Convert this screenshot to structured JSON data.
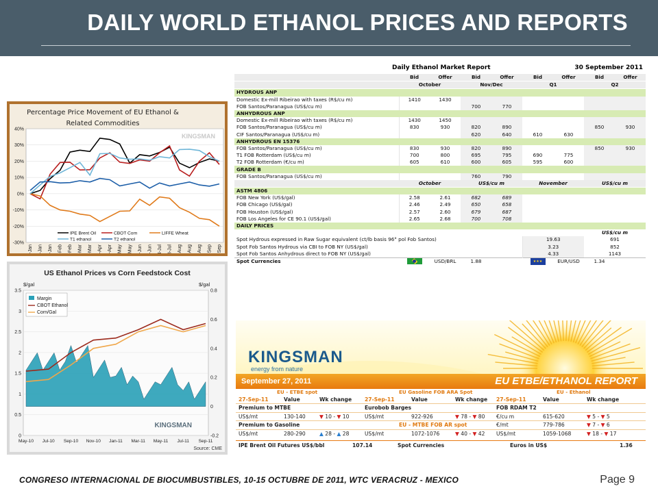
{
  "slide": {
    "title": "DAILY WORLD ETHANOL PRICES AND REPORTS",
    "footer": "CONGRESO INTERNACIONAL DE BIOCUMBUSTIBLES, 10-15 OCTUBRE DE 2011, WTC VERACRUZ - MEXICO",
    "page": "Page 9"
  },
  "chart1": {
    "title": "Percentage Price Movement of EU Ethanol & Related Commodities",
    "brand": "KINGSMAN",
    "y_ticks": [
      "40%",
      "30%",
      "20%",
      "10%",
      "0%",
      "-10%",
      "-20%",
      "-30%"
    ],
    "x_ticks": [
      "3-Jan",
      "17-Jan",
      "31-Jan",
      "14-Feb",
      "28-Feb",
      "14-Mar",
      "28-Mar",
      "11-Apr",
      "25-Apr",
      "9-May",
      "23-May",
      "6-Jun",
      "20-Jun",
      "4-Jul",
      "18-Jul",
      "1-Aug",
      "15-Aug",
      "29-Aug",
      "12-Sep",
      "26-Sep"
    ],
    "legend": [
      "IPE Brent Oil",
      "CBOT Corn",
      "LIFFE Wheat",
      "T1 ethanol",
      "T2 ethanol"
    ],
    "colors": {
      "brent": "#000000",
      "corn": "#b81d1d",
      "wheat": "#e07a1a",
      "t1": "#6fb6d8",
      "t2": "#1c5ea8"
    }
  },
  "chart2": {
    "title": "US Ethanol Prices vs Corn Feedstock Cost",
    "y_left_unit": "$/gal",
    "y_right_unit": "$/gal",
    "y_left_ticks": [
      "3.5",
      "3",
      "2.5",
      "2",
      "1.5",
      "1",
      "0.5",
      "0"
    ],
    "y_right_ticks": [
      "0.8",
      "0.6",
      "0.4",
      "0.2",
      "0",
      "-0.2"
    ],
    "x_ticks": [
      "May-10",
      "Jul-10",
      "Sep-10",
      "Nov-10",
      "Jan-11",
      "Mar-11",
      "May-11",
      "Jul-11",
      "Sep-11"
    ],
    "legend": [
      "Margin",
      "CBOT Ethanol",
      "Corn/Gal"
    ],
    "brand": "KINGSMAN",
    "source": "Source: CME"
  },
  "chart_data": [
    {
      "type": "line",
      "title": "Percentage Price Movement of EU Ethanol & Related Commodities",
      "ylim": [
        -30,
        40
      ],
      "series": [
        {
          "name": "IPE Brent Oil",
          "values": [
            0,
            2,
            8,
            15,
            25,
            28,
            26,
            33,
            34,
            30,
            20,
            24,
            22,
            26,
            28,
            20,
            16,
            18,
            22,
            20
          ]
        },
        {
          "name": "CBOT Corn",
          "values": [
            0,
            -2,
            12,
            18,
            20,
            14,
            16,
            22,
            24,
            20,
            18,
            22,
            20,
            24,
            30,
            14,
            12,
            20,
            24,
            18
          ]
        },
        {
          "name": "LIFFE Wheat",
          "values": [
            0,
            -2,
            -6,
            -10,
            -12,
            -12,
            -14,
            -16,
            -14,
            -12,
            -10,
            -4,
            -6,
            -2,
            -4,
            -8,
            -12,
            -14,
            -16,
            -20
          ]
        },
        {
          "name": "T1 ethanol",
          "values": [
            0,
            6,
            10,
            14,
            16,
            18,
            12,
            24,
            26,
            22,
            20,
            22,
            20,
            24,
            22,
            26,
            28,
            26,
            24,
            20
          ]
        },
        {
          "name": "T2 ethanol",
          "values": [
            2,
            6,
            8,
            6,
            8,
            8,
            6,
            10,
            8,
            6,
            6,
            6,
            4,
            6,
            6,
            6,
            6,
            6,
            4,
            6
          ]
        }
      ]
    },
    {
      "type": "line",
      "title": "US Ethanol Prices vs Corn Feedstock Cost",
      "categories": [
        "May-10",
        "Jul-10",
        "Sep-10",
        "Nov-10",
        "Jan-11",
        "Mar-11",
        "May-11",
        "Jul-11",
        "Sep-11"
      ],
      "series": [
        {
          "name": "CBOT Ethanol",
          "values": [
            1.55,
            1.6,
            2.0,
            2.3,
            2.35,
            2.55,
            2.8,
            2.55,
            2.7
          ]
        },
        {
          "name": "Corn/Gal",
          "values": [
            1.3,
            1.35,
            1.7,
            2.1,
            2.2,
            2.5,
            2.65,
            2.5,
            2.65
          ]
        },
        {
          "name": "Margin",
          "values": [
            0.25,
            0.25,
            0.3,
            0.2,
            0.15,
            0.05,
            0.15,
            0.05,
            0.05
          ]
        }
      ]
    }
  ],
  "report": {
    "title": "Daily Ethanol Market Report",
    "date": "30 September 2011",
    "col_heads": [
      "Bid",
      "Offer",
      "Bid",
      "Offer",
      "Bid",
      "Offer",
      "Bid",
      "Offer"
    ],
    "periods": [
      "October",
      "Nov/Dec",
      "Q1",
      "Q2"
    ],
    "sections": [
      {
        "name": "HYDROUS ANP",
        "rows": [
          {
            "label": "Domestic Ex-mill Ribeirao with taxes (R$/cu m)",
            "v": [
              "1410",
              "1430",
              "",
              "",
              "",
              "",
              "",
              ""
            ]
          },
          {
            "label": "FOB Santos/Paranagua (US$/cu m)",
            "v": [
              "",
              "",
              "700",
              "770",
              "",
              "",
              "",
              ""
            ]
          }
        ]
      },
      {
        "name": "ANHYDROUS ANP",
        "rows": [
          {
            "label": "Domestic Ex-mill Ribeirao with taxes (R$/cu m)",
            "v": [
              "1430",
              "1450",
              "",
              "",
              "",
              "",
              "",
              ""
            ]
          },
          {
            "label": "FOB Santos/Paranagua (US$/cu m)",
            "v": [
              "830",
              "930",
              "820",
              "890",
              "",
              "",
              "850",
              "930"
            ]
          },
          {
            "label": "CIF Santos/Paranagua (US$/cu m)",
            "v": [
              "",
              "",
              "620",
              "640",
              "610",
              "630",
              "",
              ""
            ]
          }
        ]
      },
      {
        "name": "ANHYDROUS EN 15376",
        "rows": [
          {
            "label": "FOB Santos/Paranagua (US$/cu m)",
            "v": [
              "830",
              "930",
              "820",
              "890",
              "",
              "",
              "850",
              "930"
            ]
          },
          {
            "label": "T1 FOB Rotterdam (US$/cu m)",
            "v": [
              "700",
              "800",
              "695",
              "795",
              "690",
              "775",
              "",
              ""
            ]
          },
          {
            "label": "T2 FOB Rotterdam (€/cu m)",
            "v": [
              "605",
              "610",
              "600",
              "605",
              "595",
              "600",
              "",
              ""
            ]
          }
        ]
      },
      {
        "name": "GRADE B",
        "rows": [
          {
            "label": "FOB Santos/Paranagua (US$/cu m)",
            "v": [
              "",
              "",
              "760",
              "790",
              "",
              "",
              "",
              ""
            ]
          }
        ]
      }
    ],
    "astm": {
      "heads": [
        "October",
        "US$/cu m",
        "November",
        "US$/cu m"
      ],
      "name": "ASTM 4806",
      "rows": [
        {
          "label": "FOB New York (US$/gal)",
          "v": [
            "2.58",
            "2.61",
            "682",
            "689"
          ]
        },
        {
          "label": "FOB Chicago (US$/gal)",
          "v": [
            "2.46",
            "2.49",
            "650",
            "658"
          ]
        },
        {
          "label": "FOB Houston (US$/gal)",
          "v": [
            "2.57",
            "2.60",
            "679",
            "687"
          ]
        },
        {
          "label": "FOB Los Angeles for CE 90.1 (US$/gal)",
          "v": [
            "2.65",
            "2.68",
            "700",
            "708"
          ]
        }
      ]
    },
    "daily": {
      "name": "DAILY PRICES",
      "unit": "US$/cu m",
      "rows": [
        {
          "label": "Spot Hydrous expressed in Raw Sugar equivalent (ct/lb basis 96° pol Fob Santos)",
          "v": "19.63",
          "u": "691"
        },
        {
          "label": "Spot Fob Santos Hydrous via CBI to FOB NY (US$/gal)",
          "v": "3.23",
          "u": "852"
        },
        {
          "label": "Spot Fob Santos Anhydrous direct to FOB NY (US$/gal)",
          "v": "4.33",
          "u": "1143"
        }
      ]
    },
    "currencies": {
      "label": "Spot Currencies",
      "pair1": "USD/BRL",
      "val1": "1.88",
      "pair2": "EUR/USD",
      "val2": "1.34"
    }
  },
  "banner": {
    "brand": "KINGSMAN",
    "tagline": "energy from nature",
    "date": "September 27, 2011",
    "report_title": "EU ETBE/ETHANOL REPORT",
    "col_groups": [
      "EU - ETBE spot",
      "EU Gasoline FOB ARA Spot",
      "EU - Ethanol"
    ],
    "sub_groups": [
      "EU - MTBE FOB AR spot"
    ],
    "heads": [
      "27-Sep-11",
      "Value",
      "Wk change",
      "27-Sep-11",
      "Value",
      "Wk change",
      "27-Sep-11",
      "Value",
      "Wk change"
    ],
    "rows": [
      [
        "Premium to MTBE",
        "",
        "",
        "Eurobob Barges",
        "",
        "",
        "FOB RDAM T2",
        "",
        ""
      ],
      [
        "US$/mt",
        "130-140",
        "10 - 10",
        "US$/mt",
        "922-926",
        "78 - 80",
        "€/cu m",
        "615-620",
        "5 - 5"
      ],
      [
        "Premium to Gasoline",
        "",
        "",
        "",
        "",
        "",
        "€/mt",
        "779-786",
        "7 - 6"
      ],
      [
        "US$/mt",
        "280-290",
        "28 - 28",
        "US$/mt",
        "1072-1076",
        "40 - 42",
        "US$/mt",
        "1059-1068",
        "18 - 17"
      ]
    ],
    "footer_row": {
      "l1": "IPE Brent Oil Futures US$/bbl",
      "v1": "107.14",
      "l2": "Spot Currencies",
      "l3": "Euros in US$",
      "v3": "1.36"
    }
  }
}
